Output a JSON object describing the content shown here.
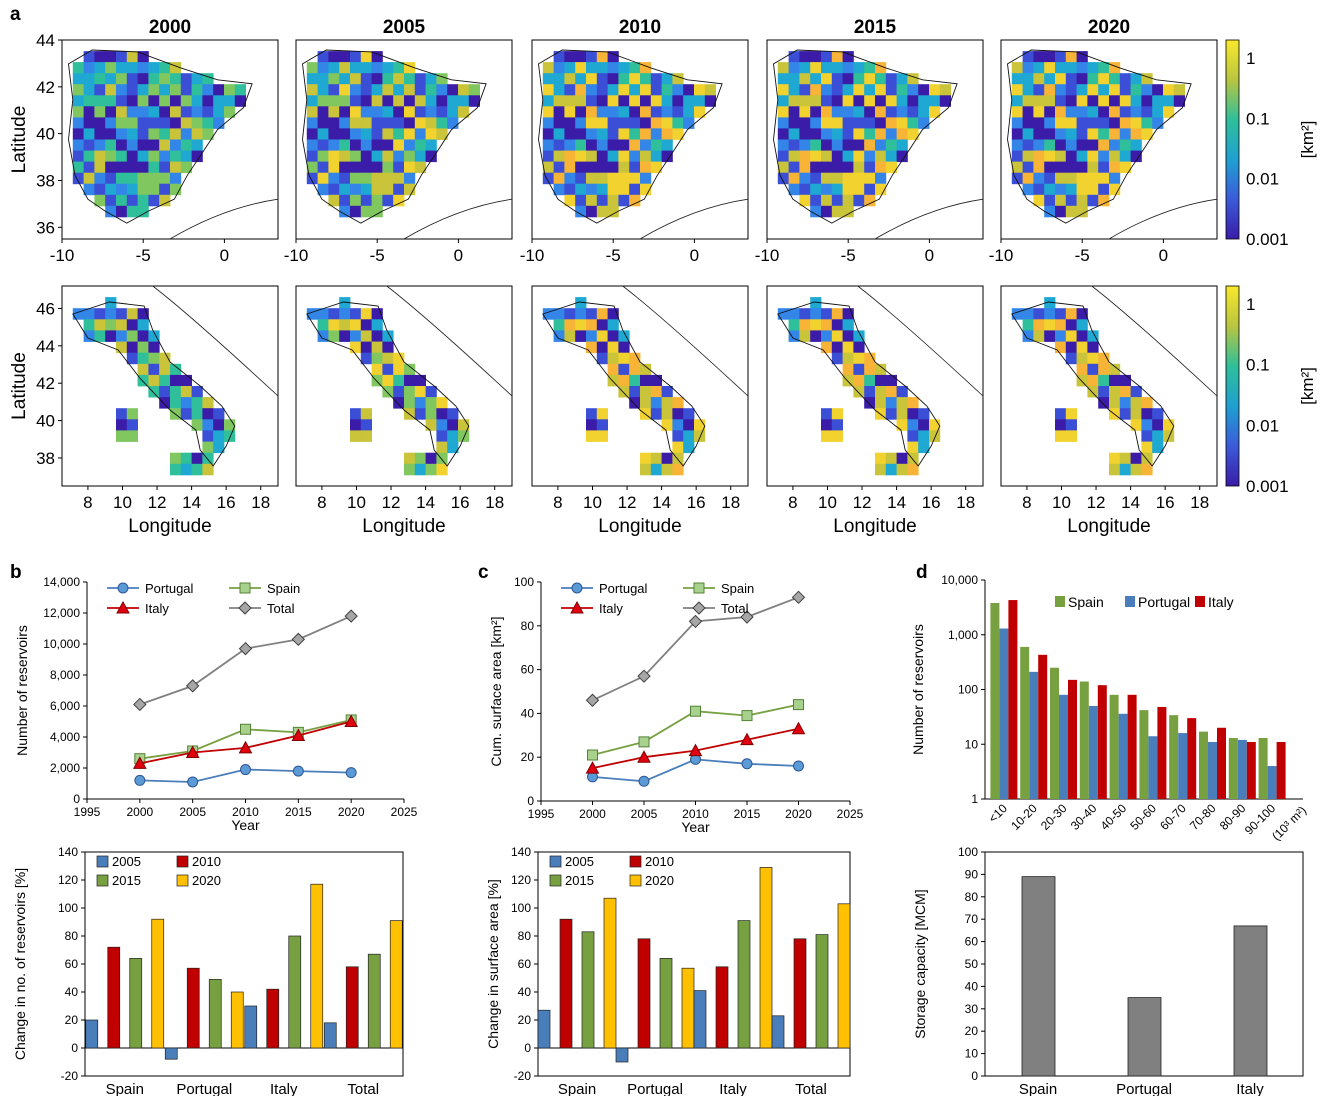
{
  "panel_labels": [
    "a",
    "b",
    "c",
    "d"
  ],
  "colors": {
    "portugal": "#4a7ebb",
    "spain": "#77a041",
    "italy": "#c00000",
    "total": "#808080",
    "y2005": "#4a7ebb",
    "y2010": "#c00000",
    "y2015": "#77a041",
    "y2020": "#ffc000",
    "storage": "#808080"
  },
  "maps": {
    "years": [
      "2000",
      "2005",
      "2010",
      "2015",
      "2020"
    ],
    "ylabel": "Latitude",
    "xlabel": "Longitude",
    "colorbar_label": "[km²]",
    "colorbar_ticks": [
      "1",
      "0.1",
      "0.01",
      "0.001"
    ],
    "iberia": {
      "x_ticks": [
        "-10",
        "-5",
        "0"
      ],
      "y_ticks": [
        "44",
        "42",
        "40",
        "38",
        "36"
      ]
    },
    "italy": {
      "x_ticks": [
        "8",
        "10",
        "12",
        "14",
        "16",
        "18"
      ],
      "y_ticks": [
        "46",
        "44",
        "42",
        "40",
        "38"
      ]
    }
  },
  "chart_data": [
    {
      "id": "b-top",
      "type": "line",
      "x": [
        2000,
        2005,
        2010,
        2015,
        2020
      ],
      "xlim": [
        1995,
        2025
      ],
      "x_ticks": [
        "1995",
        "2000",
        "2005",
        "2010",
        "2015",
        "2020",
        "2025"
      ],
      "ylim": [
        0,
        14000
      ],
      "y_ticks": [
        "0",
        "2,000",
        "4,000",
        "6,000",
        "8,000",
        "10,000",
        "12,000",
        "14,000"
      ],
      "xlabel": "Year",
      "ylabel": "Number of reservoirs",
      "series": [
        {
          "name": "Portugal",
          "marker": "circle",
          "values": [
            1200,
            1100,
            1900,
            1800,
            1700
          ]
        },
        {
          "name": "Spain",
          "marker": "square",
          "values": [
            2600,
            3100,
            4500,
            4300,
            5100
          ]
        },
        {
          "name": "Italy",
          "marker": "triangle",
          "values": [
            2300,
            3000,
            3300,
            4100,
            5000
          ]
        },
        {
          "name": "Total",
          "marker": "diamond",
          "values": [
            6100,
            7300,
            9700,
            10300,
            11800
          ]
        }
      ]
    },
    {
      "id": "b-bottom",
      "type": "bar",
      "categories": [
        "Spain",
        "Portugal",
        "Italy",
        "Total"
      ],
      "ylim": [
        -20,
        140
      ],
      "y_ticks": [
        "-20",
        "0",
        "20",
        "40",
        "60",
        "80",
        "100",
        "120",
        "140"
      ],
      "ylabel": "Change in no. of reservoirs [%]",
      "series": [
        {
          "name": "2005",
          "values": [
            20,
            -8,
            30,
            18
          ]
        },
        {
          "name": "2010",
          "values": [
            72,
            57,
            42,
            58
          ]
        },
        {
          "name": "2015",
          "values": [
            64,
            49,
            80,
            67
          ]
        },
        {
          "name": "2020",
          "values": [
            92,
            40,
            117,
            91
          ]
        }
      ]
    },
    {
      "id": "c-top",
      "type": "line",
      "x": [
        2000,
        2005,
        2010,
        2015,
        2020
      ],
      "xlim": [
        1995,
        2025
      ],
      "x_ticks": [
        "1995",
        "2000",
        "2005",
        "2010",
        "2015",
        "2020",
        "2025"
      ],
      "ylim": [
        0,
        100
      ],
      "y_ticks": [
        "0",
        "20",
        "40",
        "60",
        "80",
        "100"
      ],
      "xlabel": "Year",
      "ylabel": "Cum. surface area [km²]",
      "series": [
        {
          "name": "Portugal",
          "marker": "circle",
          "values": [
            11,
            9,
            19,
            17,
            16
          ]
        },
        {
          "name": "Spain",
          "marker": "square",
          "values": [
            21,
            27,
            41,
            39,
            44
          ]
        },
        {
          "name": "Italy",
          "marker": "triangle",
          "values": [
            15,
            20,
            23,
            28,
            33
          ]
        },
        {
          "name": "Total",
          "marker": "diamond",
          "values": [
            46,
            57,
            82,
            84,
            93
          ]
        }
      ]
    },
    {
      "id": "c-bottom",
      "type": "bar",
      "categories": [
        "Spain",
        "Portugal",
        "Italy",
        "Total"
      ],
      "ylim": [
        -20,
        140
      ],
      "y_ticks": [
        "-20",
        "0",
        "20",
        "40",
        "60",
        "80",
        "100",
        "120",
        "140"
      ],
      "ylabel": "Change in surface area [%]",
      "series": [
        {
          "name": "2005",
          "values": [
            27,
            -10,
            41,
            23
          ]
        },
        {
          "name": "2010",
          "values": [
            92,
            78,
            58,
            78
          ]
        },
        {
          "name": "2015",
          "values": [
            83,
            64,
            91,
            81
          ]
        },
        {
          "name": "2020",
          "values": [
            107,
            57,
            129,
            103
          ]
        }
      ]
    },
    {
      "id": "d-top",
      "type": "bar",
      "log_scale": true,
      "categories": [
        "<10",
        "10-20",
        "20-30",
        "30-40",
        "40-50",
        "50-60",
        "60-70",
        "70-80",
        "80-90",
        "90-100"
      ],
      "x_unit_label": "(10³ m²)",
      "ylim": [
        1,
        10000
      ],
      "y_ticks": [
        "1",
        "10",
        "100",
        "1,000",
        "10,000"
      ],
      "ylabel": "Number of reservoirs",
      "series": [
        {
          "name": "Spain",
          "values": [
            3800,
            600,
            250,
            140,
            80,
            42,
            34,
            17,
            13,
            13
          ]
        },
        {
          "name": "Portugal",
          "values": [
            1300,
            210,
            80,
            50,
            36,
            14,
            16,
            11,
            12,
            4
          ]
        },
        {
          "name": "Italy",
          "values": [
            4300,
            430,
            150,
            120,
            80,
            48,
            30,
            20,
            11,
            11
          ]
        }
      ]
    },
    {
      "id": "d-bottom",
      "type": "bar",
      "categories": [
        "Spain",
        "Portugal",
        "Italy"
      ],
      "ylim": [
        0,
        100
      ],
      "y_ticks": [
        "0",
        "10",
        "20",
        "30",
        "40",
        "50",
        "60",
        "70",
        "80",
        "90",
        "100"
      ],
      "ylabel": "Storage capacity [MCM]",
      "values": [
        89,
        35,
        67
      ]
    }
  ]
}
